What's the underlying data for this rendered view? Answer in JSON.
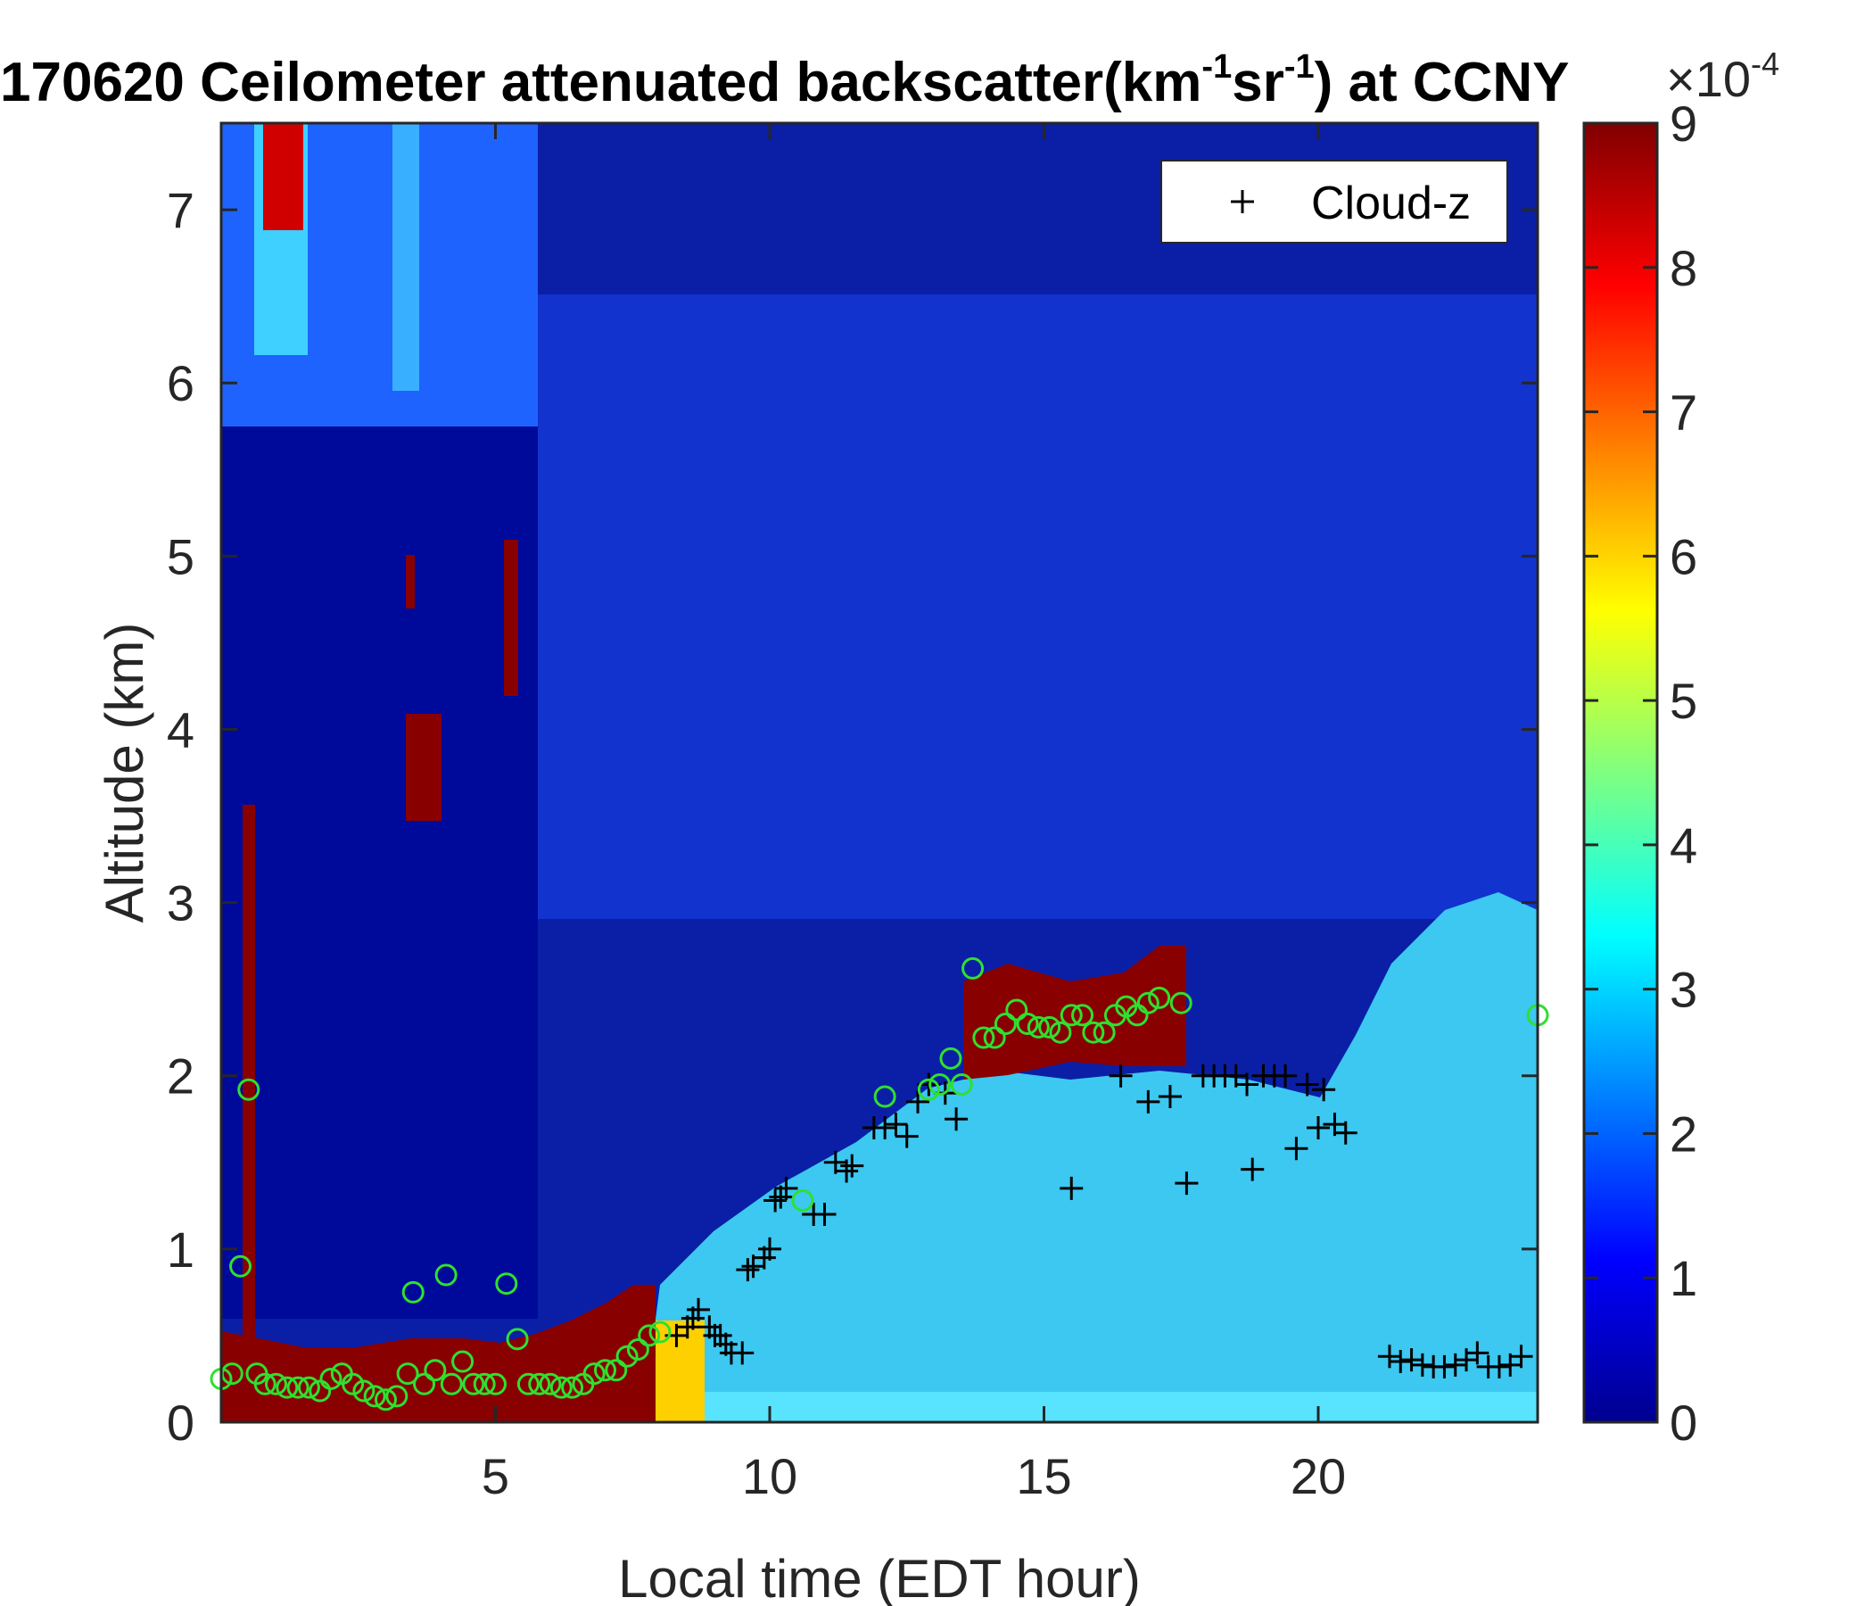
{
  "chart_data": {
    "type": "heatmap",
    "title_main": "170620 Ceilometer attenuated backscatter(km",
    "title_sup1": "-1",
    "title_mid": "sr",
    "title_sup2": "-1",
    "title_end": ") at CCNY",
    "xlabel": "Local time (EDT hour)",
    "ylabel": "Altitude (km)",
    "xlim": [
      0,
      24
    ],
    "ylim": [
      0,
      7.5
    ],
    "xticks": [
      5,
      10,
      15,
      20
    ],
    "yticks": [
      0,
      1,
      2,
      3,
      4,
      5,
      6,
      7
    ],
    "colorbar": {
      "range": [
        0,
        9
      ],
      "ticks": [
        0,
        1,
        2,
        3,
        4,
        5,
        6,
        7,
        8,
        9
      ],
      "exponent_base": "×10",
      "exponent_power": "-4",
      "colormap": "jet"
    },
    "legend": {
      "label": "Cloud-z",
      "marker": "+",
      "position": "top-right"
    },
    "cloud_base_points": [
      [
        8.3,
        0.5
      ],
      [
        8.5,
        0.55
      ],
      [
        8.6,
        0.6
      ],
      [
        8.7,
        0.65
      ],
      [
        8.9,
        0.55
      ],
      [
        9.0,
        0.5
      ],
      [
        9.1,
        0.5
      ],
      [
        9.2,
        0.45
      ],
      [
        9.3,
        0.4
      ],
      [
        9.5,
        0.4
      ],
      [
        9.6,
        0.88
      ],
      [
        9.7,
        0.9
      ],
      [
        9.9,
        0.95
      ],
      [
        10.0,
        1.0
      ],
      [
        10.1,
        1.28
      ],
      [
        10.2,
        1.3
      ],
      [
        10.3,
        1.35
      ],
      [
        10.8,
        1.2
      ],
      [
        11.0,
        1.2
      ],
      [
        11.2,
        1.5
      ],
      [
        11.4,
        1.45
      ],
      [
        11.5,
        1.48
      ],
      [
        11.9,
        1.7
      ],
      [
        12.1,
        1.7
      ],
      [
        12.3,
        1.72
      ],
      [
        12.5,
        1.65
      ],
      [
        12.7,
        1.85
      ],
      [
        12.9,
        1.95
      ],
      [
        13.2,
        1.9
      ],
      [
        13.4,
        1.75
      ],
      [
        15.5,
        1.35
      ],
      [
        16.4,
        2.0
      ],
      [
        16.9,
        1.85
      ],
      [
        17.3,
        1.88
      ],
      [
        17.6,
        1.38
      ],
      [
        17.9,
        2.0
      ],
      [
        18.1,
        2.0
      ],
      [
        18.3,
        2.0
      ],
      [
        18.5,
        2.0
      ],
      [
        18.7,
        1.95
      ],
      [
        18.8,
        1.46
      ],
      [
        19.0,
        2.0
      ],
      [
        19.2,
        2.0
      ],
      [
        19.4,
        2.0
      ],
      [
        19.6,
        1.58
      ],
      [
        19.8,
        1.95
      ],
      [
        20.0,
        1.7
      ],
      [
        20.1,
        1.92
      ],
      [
        20.3,
        1.72
      ],
      [
        20.5,
        1.67
      ],
      [
        21.3,
        0.38
      ],
      [
        21.5,
        0.35
      ],
      [
        21.7,
        0.36
      ],
      [
        21.9,
        0.33
      ],
      [
        22.1,
        0.32
      ],
      [
        22.3,
        0.32
      ],
      [
        22.5,
        0.33
      ],
      [
        22.7,
        0.36
      ],
      [
        22.9,
        0.4
      ],
      [
        23.1,
        0.32
      ],
      [
        23.3,
        0.32
      ],
      [
        23.5,
        0.33
      ],
      [
        23.7,
        0.38
      ]
    ],
    "green_circle_points": [
      [
        0.0,
        0.25
      ],
      [
        0.2,
        0.28
      ],
      [
        0.35,
        0.9
      ],
      [
        0.5,
        1.92
      ],
      [
        0.65,
        0.28
      ],
      [
        0.8,
        0.22
      ],
      [
        1.0,
        0.22
      ],
      [
        1.2,
        0.2
      ],
      [
        1.4,
        0.2
      ],
      [
        1.6,
        0.2
      ],
      [
        1.8,
        0.18
      ],
      [
        2.0,
        0.25
      ],
      [
        2.2,
        0.28
      ],
      [
        2.4,
        0.22
      ],
      [
        2.6,
        0.18
      ],
      [
        2.8,
        0.15
      ],
      [
        3.0,
        0.13
      ],
      [
        3.2,
        0.15
      ],
      [
        3.4,
        0.28
      ],
      [
        3.5,
        0.75
      ],
      [
        3.7,
        0.22
      ],
      [
        3.9,
        0.3
      ],
      [
        4.1,
        0.85
      ],
      [
        4.2,
        0.22
      ],
      [
        4.4,
        0.35
      ],
      [
        4.6,
        0.22
      ],
      [
        4.8,
        0.22
      ],
      [
        5.0,
        0.22
      ],
      [
        5.2,
        0.8
      ],
      [
        5.4,
        0.48
      ],
      [
        5.6,
        0.22
      ],
      [
        5.8,
        0.22
      ],
      [
        6.0,
        0.22
      ],
      [
        6.2,
        0.2
      ],
      [
        6.4,
        0.2
      ],
      [
        6.6,
        0.22
      ],
      [
        6.8,
        0.28
      ],
      [
        7.0,
        0.3
      ],
      [
        7.2,
        0.3
      ],
      [
        7.4,
        0.38
      ],
      [
        7.6,
        0.42
      ],
      [
        7.8,
        0.5
      ],
      [
        8.0,
        0.52
      ],
      [
        10.6,
        1.28
      ],
      [
        12.1,
        1.88
      ],
      [
        12.9,
        1.92
      ],
      [
        13.1,
        1.95
      ],
      [
        13.3,
        2.1
      ],
      [
        13.5,
        1.95
      ],
      [
        13.7,
        2.62
      ],
      [
        13.9,
        2.22
      ],
      [
        14.1,
        2.22
      ],
      [
        14.3,
        2.3
      ],
      [
        14.5,
        2.38
      ],
      [
        14.7,
        2.3
      ],
      [
        14.9,
        2.28
      ],
      [
        15.1,
        2.28
      ],
      [
        15.3,
        2.25
      ],
      [
        15.5,
        2.35
      ],
      [
        15.7,
        2.35
      ],
      [
        15.9,
        2.25
      ],
      [
        16.1,
        2.25
      ],
      [
        16.3,
        2.35
      ],
      [
        16.5,
        2.4
      ],
      [
        16.7,
        2.35
      ],
      [
        16.9,
        2.42
      ],
      [
        17.1,
        2.45
      ],
      [
        17.5,
        2.42
      ],
      [
        24.0,
        2.35
      ]
    ]
  }
}
